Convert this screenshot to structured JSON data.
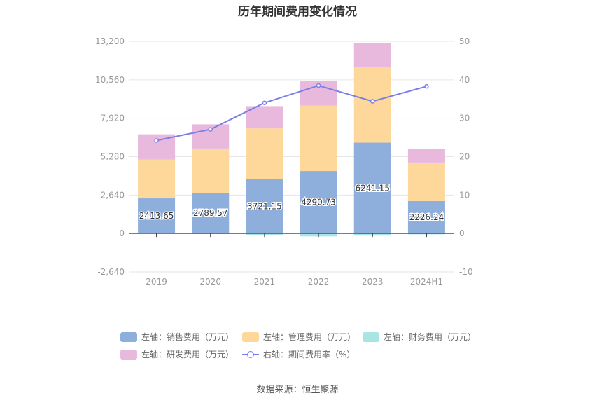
{
  "chart_data": {
    "type": "bar",
    "stacked": true,
    "title": "历年期间费用变化情况",
    "categories": [
      "2019",
      "2020",
      "2021",
      "2022",
      "2023",
      "2024H1"
    ],
    "y_left": {
      "ticks": [
        "13,200",
        "10,560",
        "7,920",
        "5,280",
        "2,640",
        "0",
        "-2,640"
      ],
      "ylim": [
        -2640,
        13200
      ]
    },
    "y_right": {
      "ticks": [
        "50",
        "40",
        "30",
        "20",
        "10",
        "0",
        "-10"
      ],
      "ylim": [
        -10,
        50
      ]
    },
    "series": [
      {
        "name": "左轴：销售费用（万元）",
        "color": "#8eaedc",
        "axis": "left",
        "values": [
          2413.65,
          2789.57,
          3721.15,
          4290.73,
          6241.15,
          2226.24
        ],
        "labels": [
          "2413.65",
          "2789.57",
          "3721.15",
          "4290.73",
          "6241.15",
          "2226.24"
        ]
      },
      {
        "name": "左轴：管理费用（万元）",
        "color": "#fdd89a",
        "axis": "left",
        "values": [
          2600,
          3050,
          3500,
          4500,
          5200,
          2650
        ]
      },
      {
        "name": "左轴：财务费用（万元）",
        "color": "#a7e6e3",
        "axis": "left",
        "values": [
          100,
          -30,
          -100,
          -200,
          -150,
          -60
        ]
      },
      {
        "name": "左轴：研发费用（万元）",
        "color": "#e8b9dc",
        "axis": "left",
        "values": [
          1700,
          1660,
          1530,
          1700,
          1650,
          950
        ]
      },
      {
        "name": "右轴：期间费用率（%）",
        "color": "#7b7fe8",
        "axis": "right",
        "type": "line",
        "values": [
          24.2,
          27.1,
          34.0,
          38.5,
          34.4,
          38.3
        ]
      }
    ],
    "grid": true,
    "legend": "bottom"
  },
  "source": "数据来源：恒生聚源"
}
